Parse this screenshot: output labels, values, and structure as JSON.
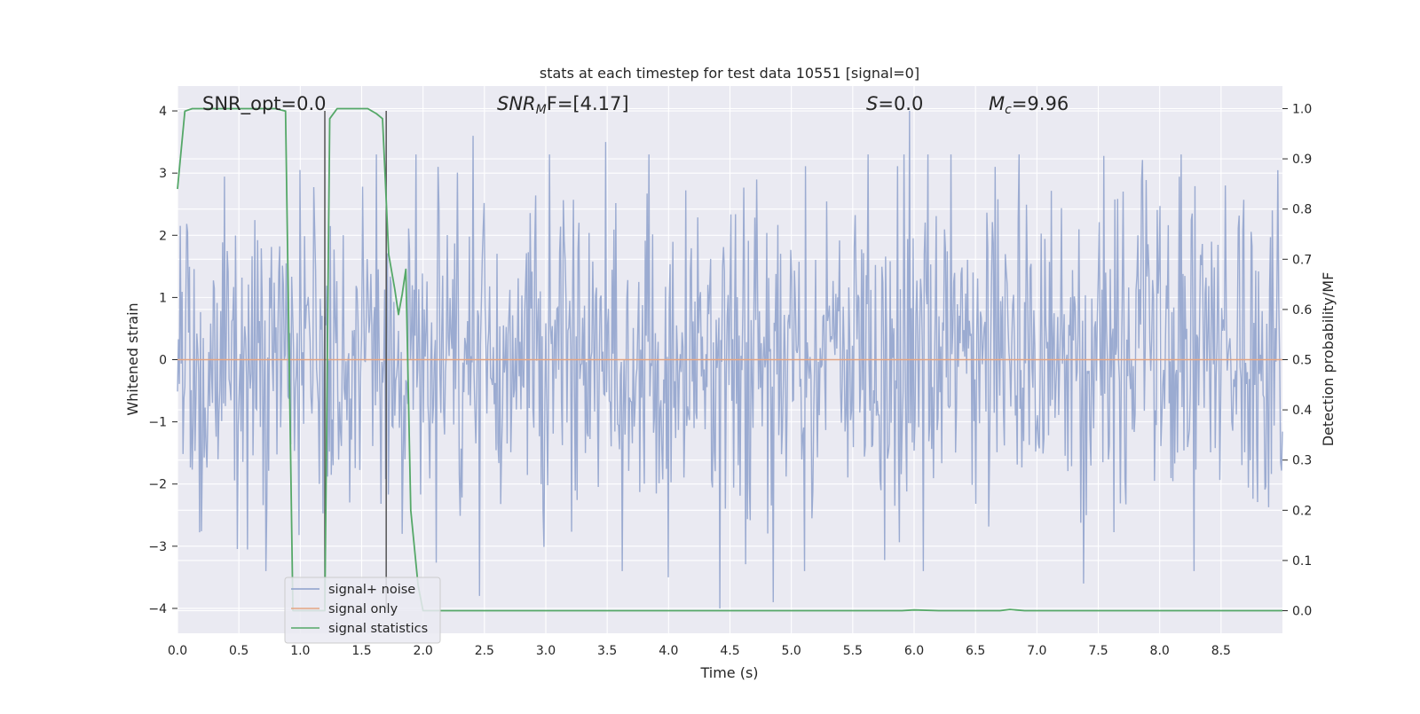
{
  "chart_data": {
    "type": "line",
    "title": "stats at each timestep for test data 10551 [signal=0]",
    "xlabel": "Time (s)",
    "ylabel": "Whitened strain",
    "y2label": "Detection probability/MF",
    "xlim": [
      0.0,
      9.0
    ],
    "ylim": [
      -4.4,
      4.4
    ],
    "y2lim": [
      -0.045,
      1.045
    ],
    "xticks": [
      "0.0",
      "0.5",
      "1.0",
      "1.5",
      "2.0",
      "2.5",
      "3.0",
      "3.5",
      "4.0",
      "4.5",
      "5.0",
      "5.5",
      "6.0",
      "6.5",
      "7.0",
      "7.5",
      "8.0",
      "8.5"
    ],
    "yticks": [
      "−4",
      "−3",
      "−2",
      "−1",
      "0",
      "1",
      "2",
      "3",
      "4"
    ],
    "y2ticks": [
      "0.0",
      "0.1",
      "0.2",
      "0.3",
      "0.4",
      "0.5",
      "0.6",
      "0.7",
      "0.8",
      "0.9",
      "1.0"
    ],
    "grid": true,
    "legend": {
      "placement": "lower-left",
      "entries": [
        {
          "label": "signal+ noise",
          "color": "#8da0cb"
        },
        {
          "label": "signal only",
          "color": "#e5a582"
        },
        {
          "label": "signal statistics",
          "color": "#55a868"
        }
      ]
    },
    "annotations": {
      "snr_opt": "SNR_opt=0.0",
      "snr_mf_main": "SNR",
      "snr_mf_sub": "M",
      "snr_mf_rest": "F=[4.17]",
      "s_main": "S",
      "s_rest": "=0.0",
      "mc_main": "M",
      "mc_sub": "c",
      "mc_rest": "=9.96"
    },
    "vlines_x": [
      1.2,
      1.7
    ],
    "series": [
      {
        "name": "signal+ noise",
        "color": "#8da0cb",
        "note_samples": 1200,
        "envelope_sigma": 1.25,
        "peaks": [
          {
            "x": 2.41,
            "y": 3.6
          },
          {
            "x": 4.42,
            "y": -4.0
          },
          {
            "x": 4.85,
            "y": -3.9
          },
          {
            "x": 5.96,
            "y": 4.0
          },
          {
            "x": 7.38,
            "y": -3.6
          },
          {
            "x": 2.46,
            "y": -3.8
          },
          {
            "x": 3.49,
            "y": 3.5
          },
          {
            "x": 4.0,
            "y": -3.5
          },
          {
            "x": 6.66,
            "y": 3.1
          },
          {
            "x": 8.92,
            "y": 2.4
          }
        ]
      },
      {
        "name": "signal only",
        "color": "#e5a582",
        "x": [
          0.0,
          9.0
        ],
        "y": [
          0.0,
          0.0
        ]
      },
      {
        "name": "signal statistics",
        "color": "#55a868",
        "axis": "right",
        "x": [
          0.0,
          0.06,
          0.12,
          0.2,
          0.5,
          0.8,
          0.88,
          0.94,
          1.0,
          1.1,
          1.16,
          1.2,
          1.24,
          1.3,
          1.4,
          1.55,
          1.62,
          1.67,
          1.72,
          1.77,
          1.8,
          1.83,
          1.86,
          1.9,
          1.96,
          2.0,
          2.2,
          3.0,
          4.0,
          5.0,
          5.9,
          6.0,
          6.2,
          6.7,
          6.78,
          6.9,
          8.0,
          9.0
        ],
        "y": [
          0.84,
          0.995,
          1.0,
          1.0,
          1.0,
          1.0,
          0.995,
          0.0,
          0.0,
          0.0,
          0.0,
          0.0,
          0.98,
          1.0,
          1.0,
          1.0,
          0.99,
          0.98,
          0.71,
          0.64,
          0.59,
          0.63,
          0.68,
          0.2,
          0.05,
          0.0,
          0.0,
          0.0,
          0.0,
          0.0,
          0.0,
          0.0015,
          0.0,
          0.0,
          0.0025,
          0.0,
          0.0,
          0.0
        ]
      }
    ]
  }
}
